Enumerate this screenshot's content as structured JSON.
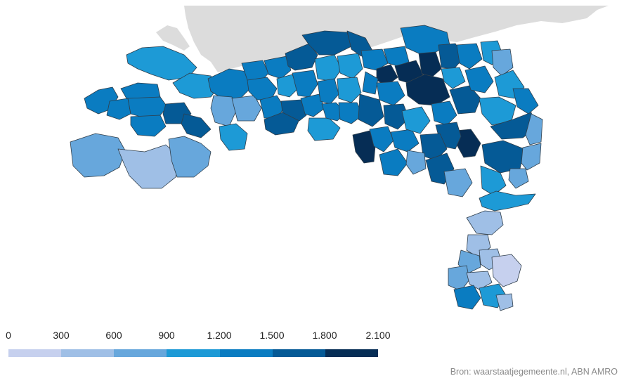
{
  "legend": {
    "ticks": [
      "0",
      "300",
      "600",
      "900",
      "1.200",
      "1.500",
      "1.800",
      "2.100"
    ],
    "colors": [
      "#c6d0ee",
      "#9fbfe6",
      "#67a7dc",
      "#1d9ad6",
      "#0a7cc1",
      "#055a96",
      "#062d55"
    ]
  },
  "source": "Bron: waarstaatjegemeente.nl, ABN AMRO"
}
